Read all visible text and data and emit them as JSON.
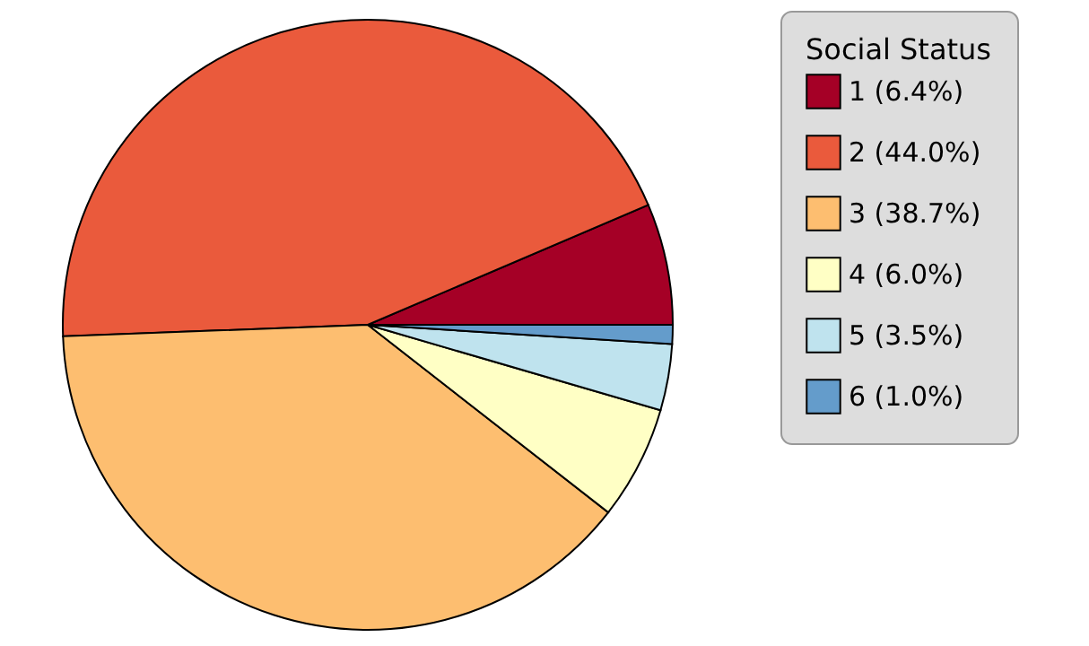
{
  "chart_data": {
    "type": "pie",
    "legend_title": "Social Status",
    "legend": "right",
    "categories": [
      "1 (6.4%)",
      "2 (44.0%)",
      "3 (38.7%)",
      "4 (6.0%)",
      "5 (3.5%)",
      "6 (1.0%)"
    ],
    "values": [
      6.4,
      44.0,
      38.7,
      6.0,
      3.5,
      1.0
    ],
    "colors": [
      "#a50026",
      "#ea5a3c",
      "#fdbe70",
      "#ffffc5",
      "#bfe3ee",
      "#649ccb"
    ]
  }
}
